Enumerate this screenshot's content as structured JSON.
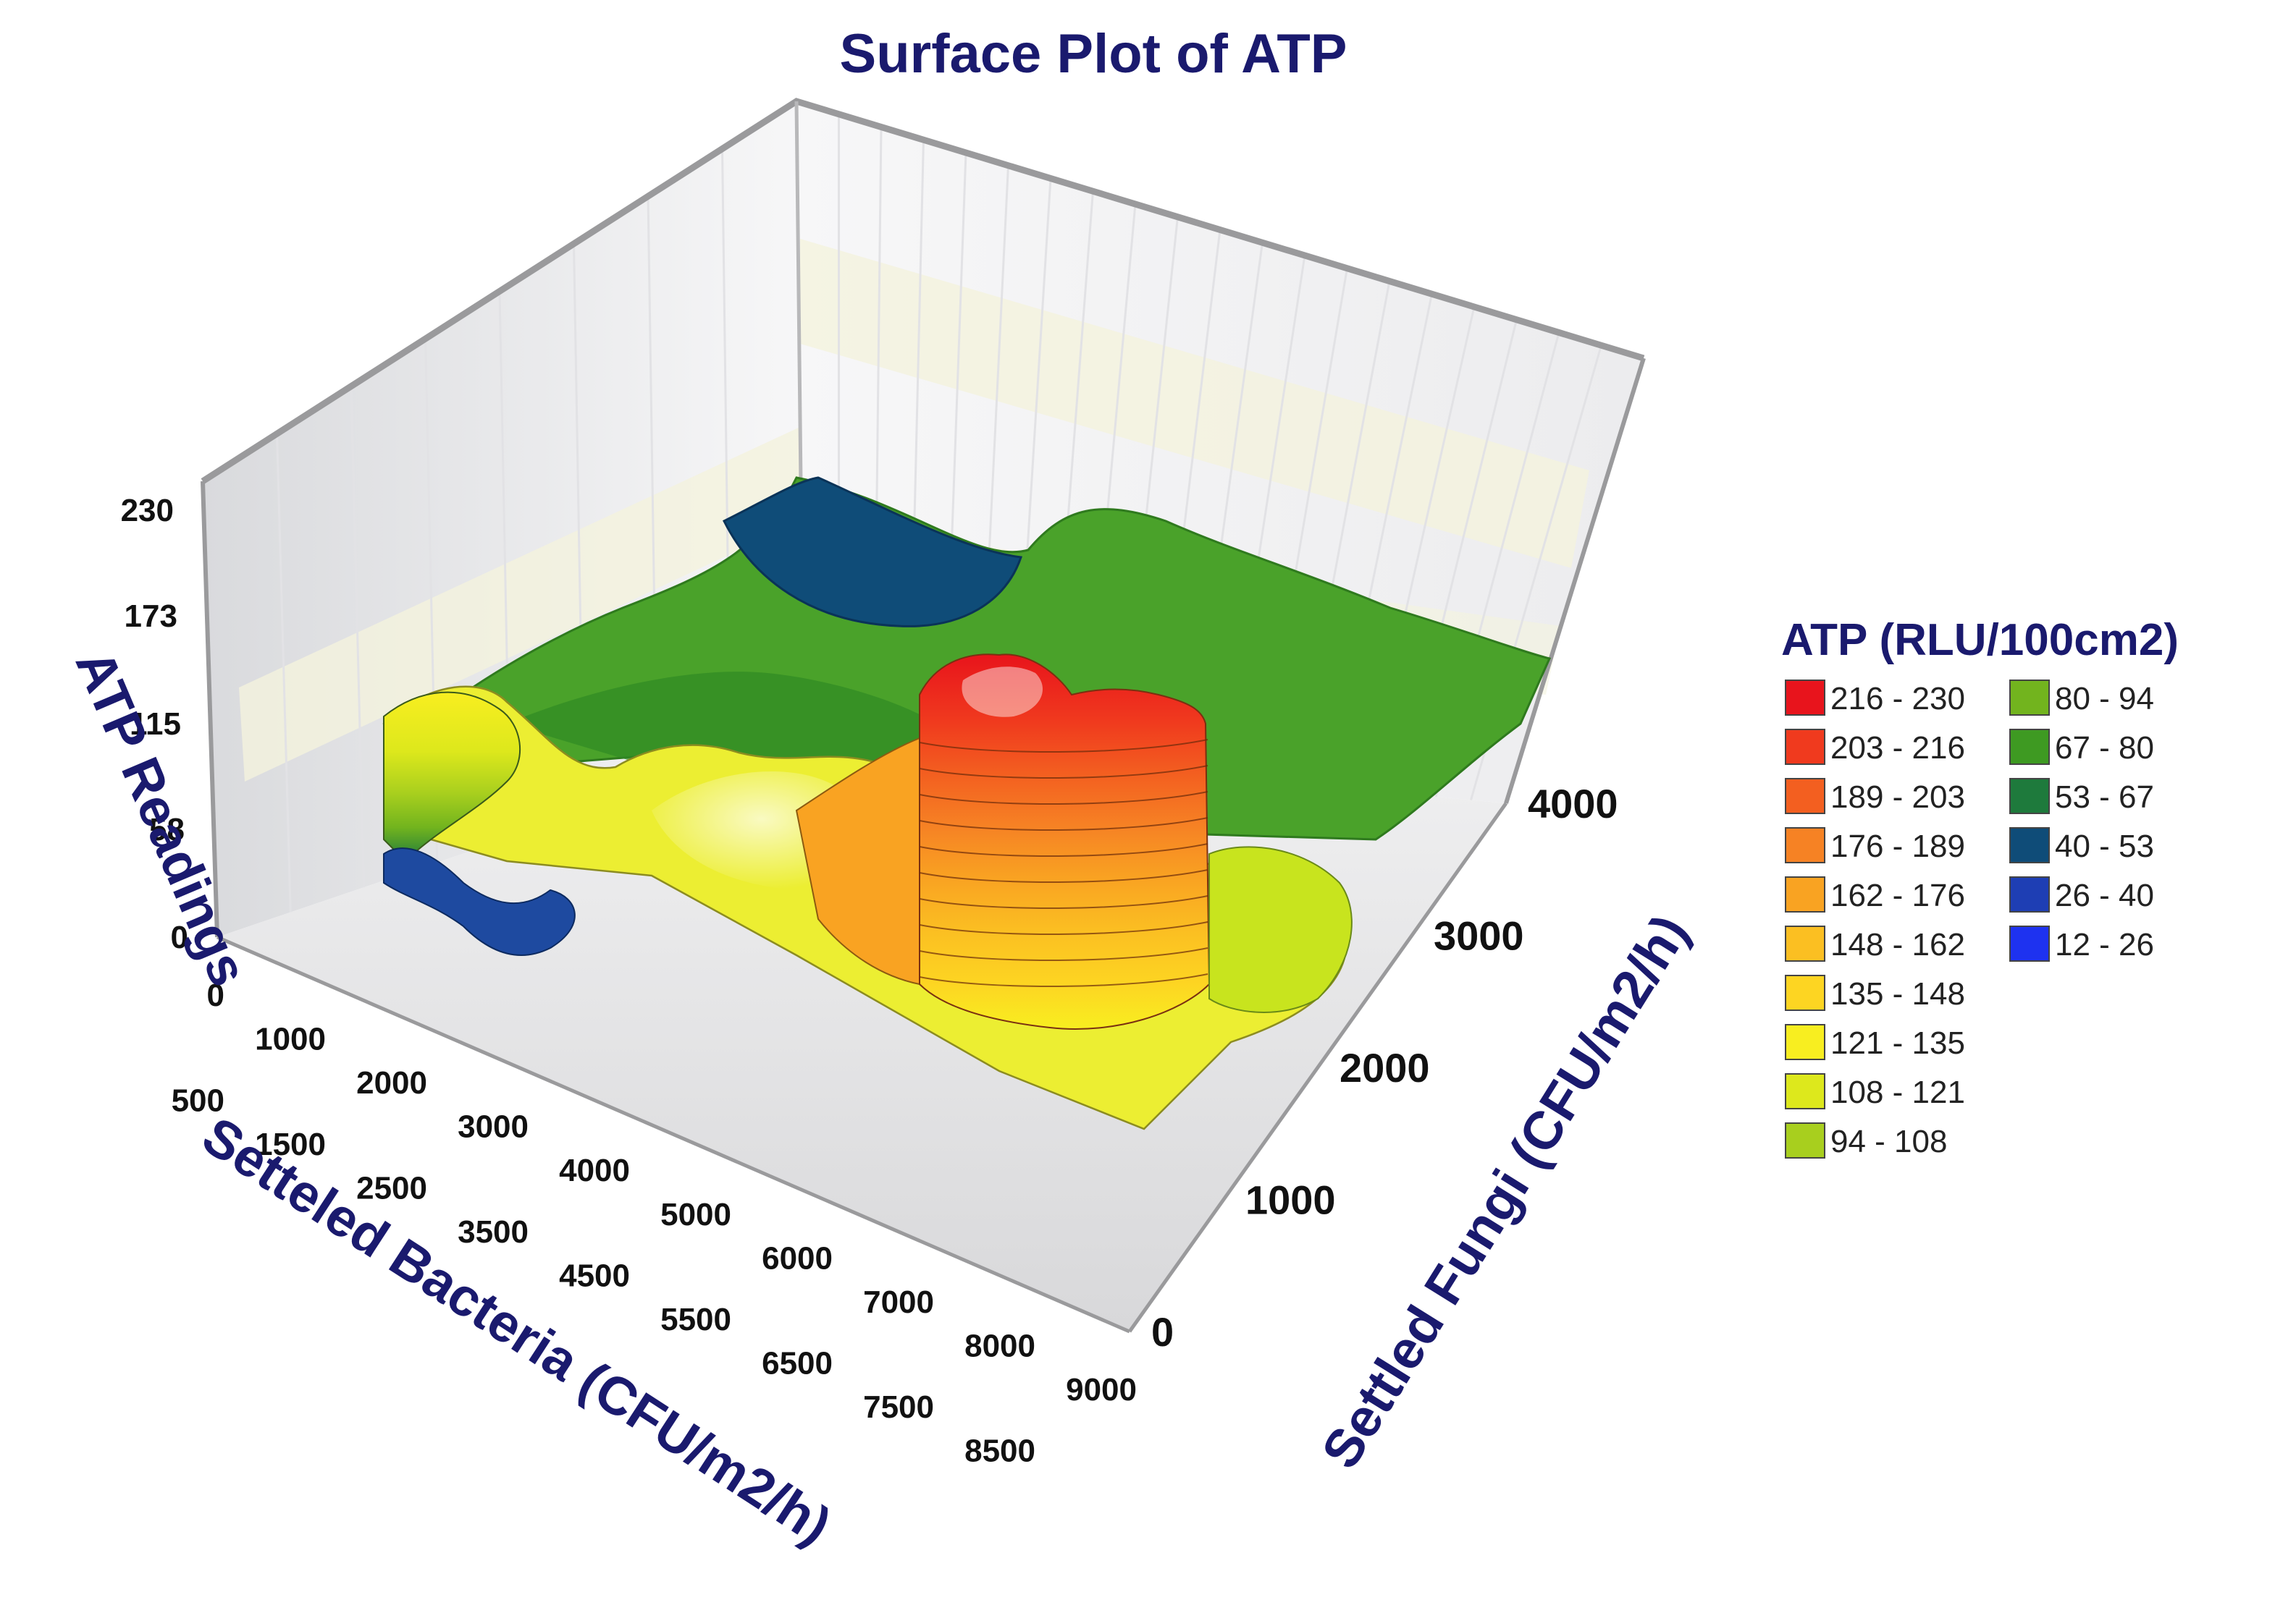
{
  "chart_data": {
    "type": "surface",
    "title": "Surface Plot of ATP",
    "zlabel": "ATP Readings",
    "xlabel": "Setteled Bacteria (CFU/m2/h)",
    "ylabel": "Settled Fungi (CFU/m2/h)",
    "z_ticks": [
      "0",
      "58",
      "115",
      "173",
      "230"
    ],
    "x_ticks_row1": [
      "0",
      "1000",
      "2000",
      "3000",
      "4000",
      "5000",
      "6000",
      "7000",
      "8000",
      "9000"
    ],
    "x_ticks_row2": [
      "500",
      "1500",
      "2500",
      "3500",
      "4500",
      "5500",
      "6500",
      "7500",
      "8500"
    ],
    "y_ticks": [
      "0",
      "1000",
      "2000",
      "3000",
      "4000"
    ],
    "zlim": [
      0,
      230
    ],
    "xlim": [
      0,
      9000
    ],
    "ylim": [
      0,
      4000
    ],
    "legend_title": "ATP (RLU/100cm2)",
    "legend_position": "right",
    "legend": [
      {
        "label": "216 - 230",
        "color": "#e8141c"
      },
      {
        "label": "203 - 216",
        "color": "#f03a1e"
      },
      {
        "label": "189 - 203",
        "color": "#f35f20"
      },
      {
        "label": "176 - 189",
        "color": "#f68224"
      },
      {
        "label": "162 - 176",
        "color": "#f9a322"
      },
      {
        "label": "148 - 162",
        "color": "#fbbf22"
      },
      {
        "label": "135 - 148",
        "color": "#fdd522"
      },
      {
        "label": "121 - 135",
        "color": "#f8ee20"
      },
      {
        "label": "108 - 121",
        "color": "#dde81c"
      },
      {
        "label": "94 - 108",
        "color": "#a8cf1e"
      },
      {
        "label": "80 - 94",
        "color": "#72b41e"
      },
      {
        "label": "67 - 80",
        "color": "#3e9a22"
      },
      {
        "label": "53 - 67",
        "color": "#1e7a3c"
      },
      {
        "label": "40 - 53",
        "color": "#0f4c78"
      },
      {
        "label": "26 - 40",
        "color": "#1e3eb4"
      },
      {
        "label": "12 - 26",
        "color": "#1e32f0"
      }
    ]
  }
}
